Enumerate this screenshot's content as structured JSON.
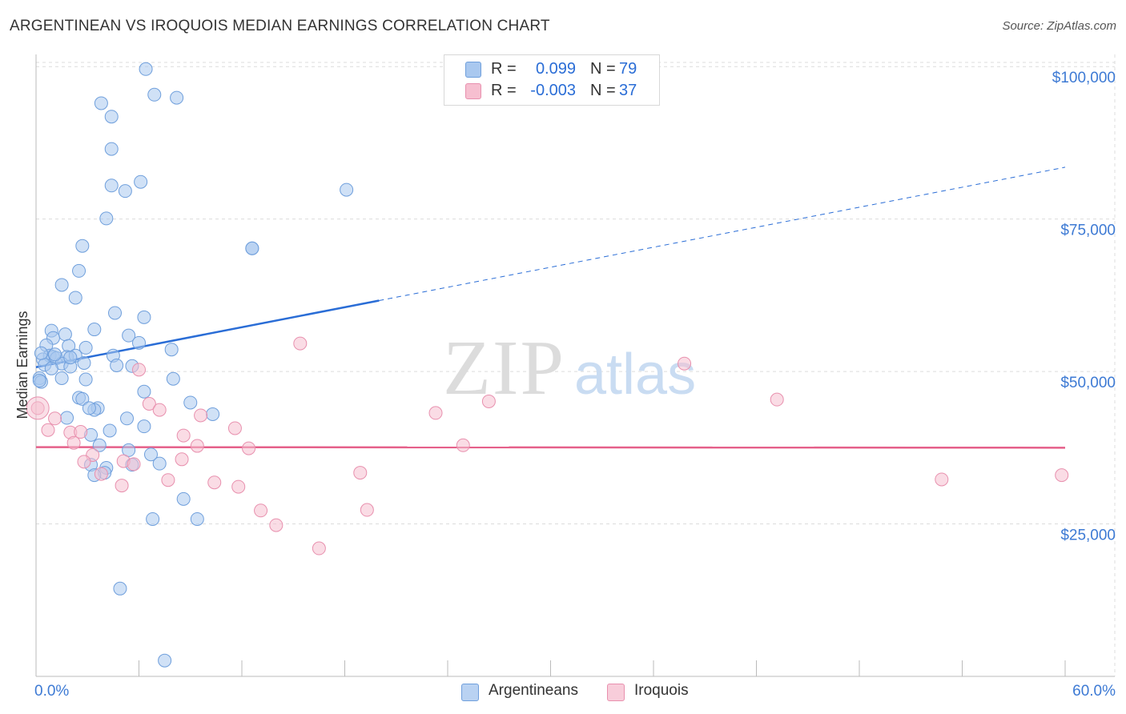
{
  "chart_data": {
    "type": "scatter",
    "title": "ARGENTINEAN VS IROQUOIS MEDIAN EARNINGS CORRELATION CHART",
    "source": "Source: ZipAtlas.com",
    "xlabel": "",
    "ylabel": "Median Earnings",
    "xlim": [
      0,
      60
    ],
    "ylim": [
      0,
      102000
    ],
    "x_tick_labels": [
      "0.0%",
      "60.0%"
    ],
    "y_ticks": [
      25000,
      50000,
      75000,
      100000
    ],
    "y_tick_labels": [
      "$25,000",
      "$50,000",
      "$75,000",
      "$100,000"
    ],
    "grid": true,
    "watermark": "ZIPatlas",
    "legend": {
      "position": "top-center",
      "entries": [
        {
          "r_label": "R =",
          "r_value": "0.099",
          "n_label": "N =",
          "n_value": "79"
        },
        {
          "r_label": "R =",
          "r_value": "-0.003",
          "n_label": "N =",
          "n_value": "37"
        }
      ]
    },
    "bottom_legend": [
      "Argentineans",
      "Iroquois"
    ],
    "colors": {
      "blue_fill": "#a9c8ef",
      "blue_stroke": "#6f9fdc",
      "blue_line": "#2a6dd6",
      "pink_fill": "#f6bfd0",
      "pink_stroke": "#e890ae",
      "pink_line": "#e5608a",
      "axis_text": "#3d7ad4",
      "grid": "#dcdcdc"
    },
    "series": [
      {
        "name": "Argentineans",
        "trend": {
          "x0": 0,
          "y0": 50700,
          "x_solid_end": 20,
          "x1": 60,
          "y1": 83500
        },
        "points": [
          [
            6.4,
            99600
          ],
          [
            6.9,
            95400
          ],
          [
            8.2,
            94900
          ],
          [
            3.8,
            94000
          ],
          [
            4.4,
            91800
          ],
          [
            4.4,
            86500
          ],
          [
            4.4,
            80500
          ],
          [
            5.2,
            79600
          ],
          [
            6.1,
            81100
          ],
          [
            18.1,
            79800
          ],
          [
            4.1,
            75100
          ],
          [
            12.6,
            70200
          ],
          [
            2.7,
            70600
          ],
          [
            2.5,
            66500
          ],
          [
            1.5,
            64200
          ],
          [
            2.3,
            62100
          ],
          [
            4.6,
            59600
          ],
          [
            6.3,
            58900
          ],
          [
            3.4,
            56900
          ],
          [
            0.9,
            56700
          ],
          [
            1.7,
            56100
          ],
          [
            5.4,
            55900
          ],
          [
            1.0,
            55500
          ],
          [
            6.0,
            54700
          ],
          [
            0.6,
            54300
          ],
          [
            1.9,
            54200
          ],
          [
            7.9,
            53600
          ],
          [
            2.9,
            53900
          ],
          [
            0.8,
            52600
          ],
          [
            1.0,
            52400
          ],
          [
            1.2,
            52200
          ],
          [
            1.8,
            52400
          ],
          [
            2.3,
            52600
          ],
          [
            4.5,
            52600
          ],
          [
            0.4,
            52000
          ],
          [
            1.5,
            51300
          ],
          [
            0.5,
            51100
          ],
          [
            2.8,
            51400
          ],
          [
            4.7,
            51000
          ],
          [
            5.6,
            50900
          ],
          [
            2.0,
            50800
          ],
          [
            0.9,
            50500
          ],
          [
            0.2,
            48900
          ],
          [
            1.5,
            48900
          ],
          [
            2.9,
            48700
          ],
          [
            8.0,
            48800
          ],
          [
            0.3,
            48300
          ],
          [
            6.3,
            46700
          ],
          [
            2.5,
            45700
          ],
          [
            2.7,
            45500
          ],
          [
            9.0,
            44900
          ],
          [
            3.6,
            44000
          ],
          [
            3.4,
            43700
          ],
          [
            10.3,
            43000
          ],
          [
            1.8,
            42400
          ],
          [
            5.3,
            42300
          ],
          [
            6.3,
            41000
          ],
          [
            4.3,
            40300
          ],
          [
            3.2,
            39600
          ],
          [
            3.7,
            37900
          ],
          [
            5.4,
            37100
          ],
          [
            6.7,
            36400
          ],
          [
            3.2,
            34700
          ],
          [
            4.1,
            34200
          ],
          [
            5.6,
            34700
          ],
          [
            7.2,
            34900
          ],
          [
            4.0,
            33400
          ],
          [
            3.4,
            33000
          ],
          [
            8.6,
            29100
          ],
          [
            6.8,
            25800
          ],
          [
            9.4,
            25800
          ],
          [
            4.9,
            14400
          ],
          [
            7.5,
            2600
          ],
          [
            12.6,
            70200
          ],
          [
            0.2,
            48500
          ],
          [
            0.3,
            53000
          ],
          [
            1.1,
            52800
          ],
          [
            3.1,
            44000
          ],
          [
            2.0,
            52300
          ]
        ]
      },
      {
        "name": "Iroquois",
        "trend": {
          "x0": 0,
          "y0": 37600,
          "x_solid_end": 60,
          "x1": 60,
          "y1": 37500
        },
        "points": [
          [
            0.1,
            44000
          ],
          [
            15.4,
            54600
          ],
          [
            37.8,
            51300
          ],
          [
            6.0,
            50300
          ],
          [
            26.4,
            45100
          ],
          [
            43.2,
            45400
          ],
          [
            6.6,
            44700
          ],
          [
            7.2,
            43700
          ],
          [
            23.3,
            43200
          ],
          [
            1.1,
            42300
          ],
          [
            9.6,
            42800
          ],
          [
            11.6,
            40700
          ],
          [
            0.7,
            40400
          ],
          [
            2.0,
            40000
          ],
          [
            2.6,
            40100
          ],
          [
            8.6,
            39500
          ],
          [
            2.2,
            38300
          ],
          [
            24.9,
            37900
          ],
          [
            9.4,
            37800
          ],
          [
            12.4,
            37400
          ],
          [
            3.3,
            36300
          ],
          [
            5.1,
            35300
          ],
          [
            8.5,
            35600
          ],
          [
            2.8,
            35200
          ],
          [
            5.7,
            34800
          ],
          [
            18.9,
            33400
          ],
          [
            3.8,
            33200
          ],
          [
            7.7,
            32200
          ],
          [
            10.4,
            31800
          ],
          [
            11.8,
            31100
          ],
          [
            5.0,
            31300
          ],
          [
            52.8,
            32300
          ],
          [
            59.8,
            33000
          ],
          [
            13.1,
            27200
          ],
          [
            19.3,
            27300
          ],
          [
            14.0,
            24800
          ],
          [
            16.5,
            21000
          ]
        ]
      }
    ]
  }
}
